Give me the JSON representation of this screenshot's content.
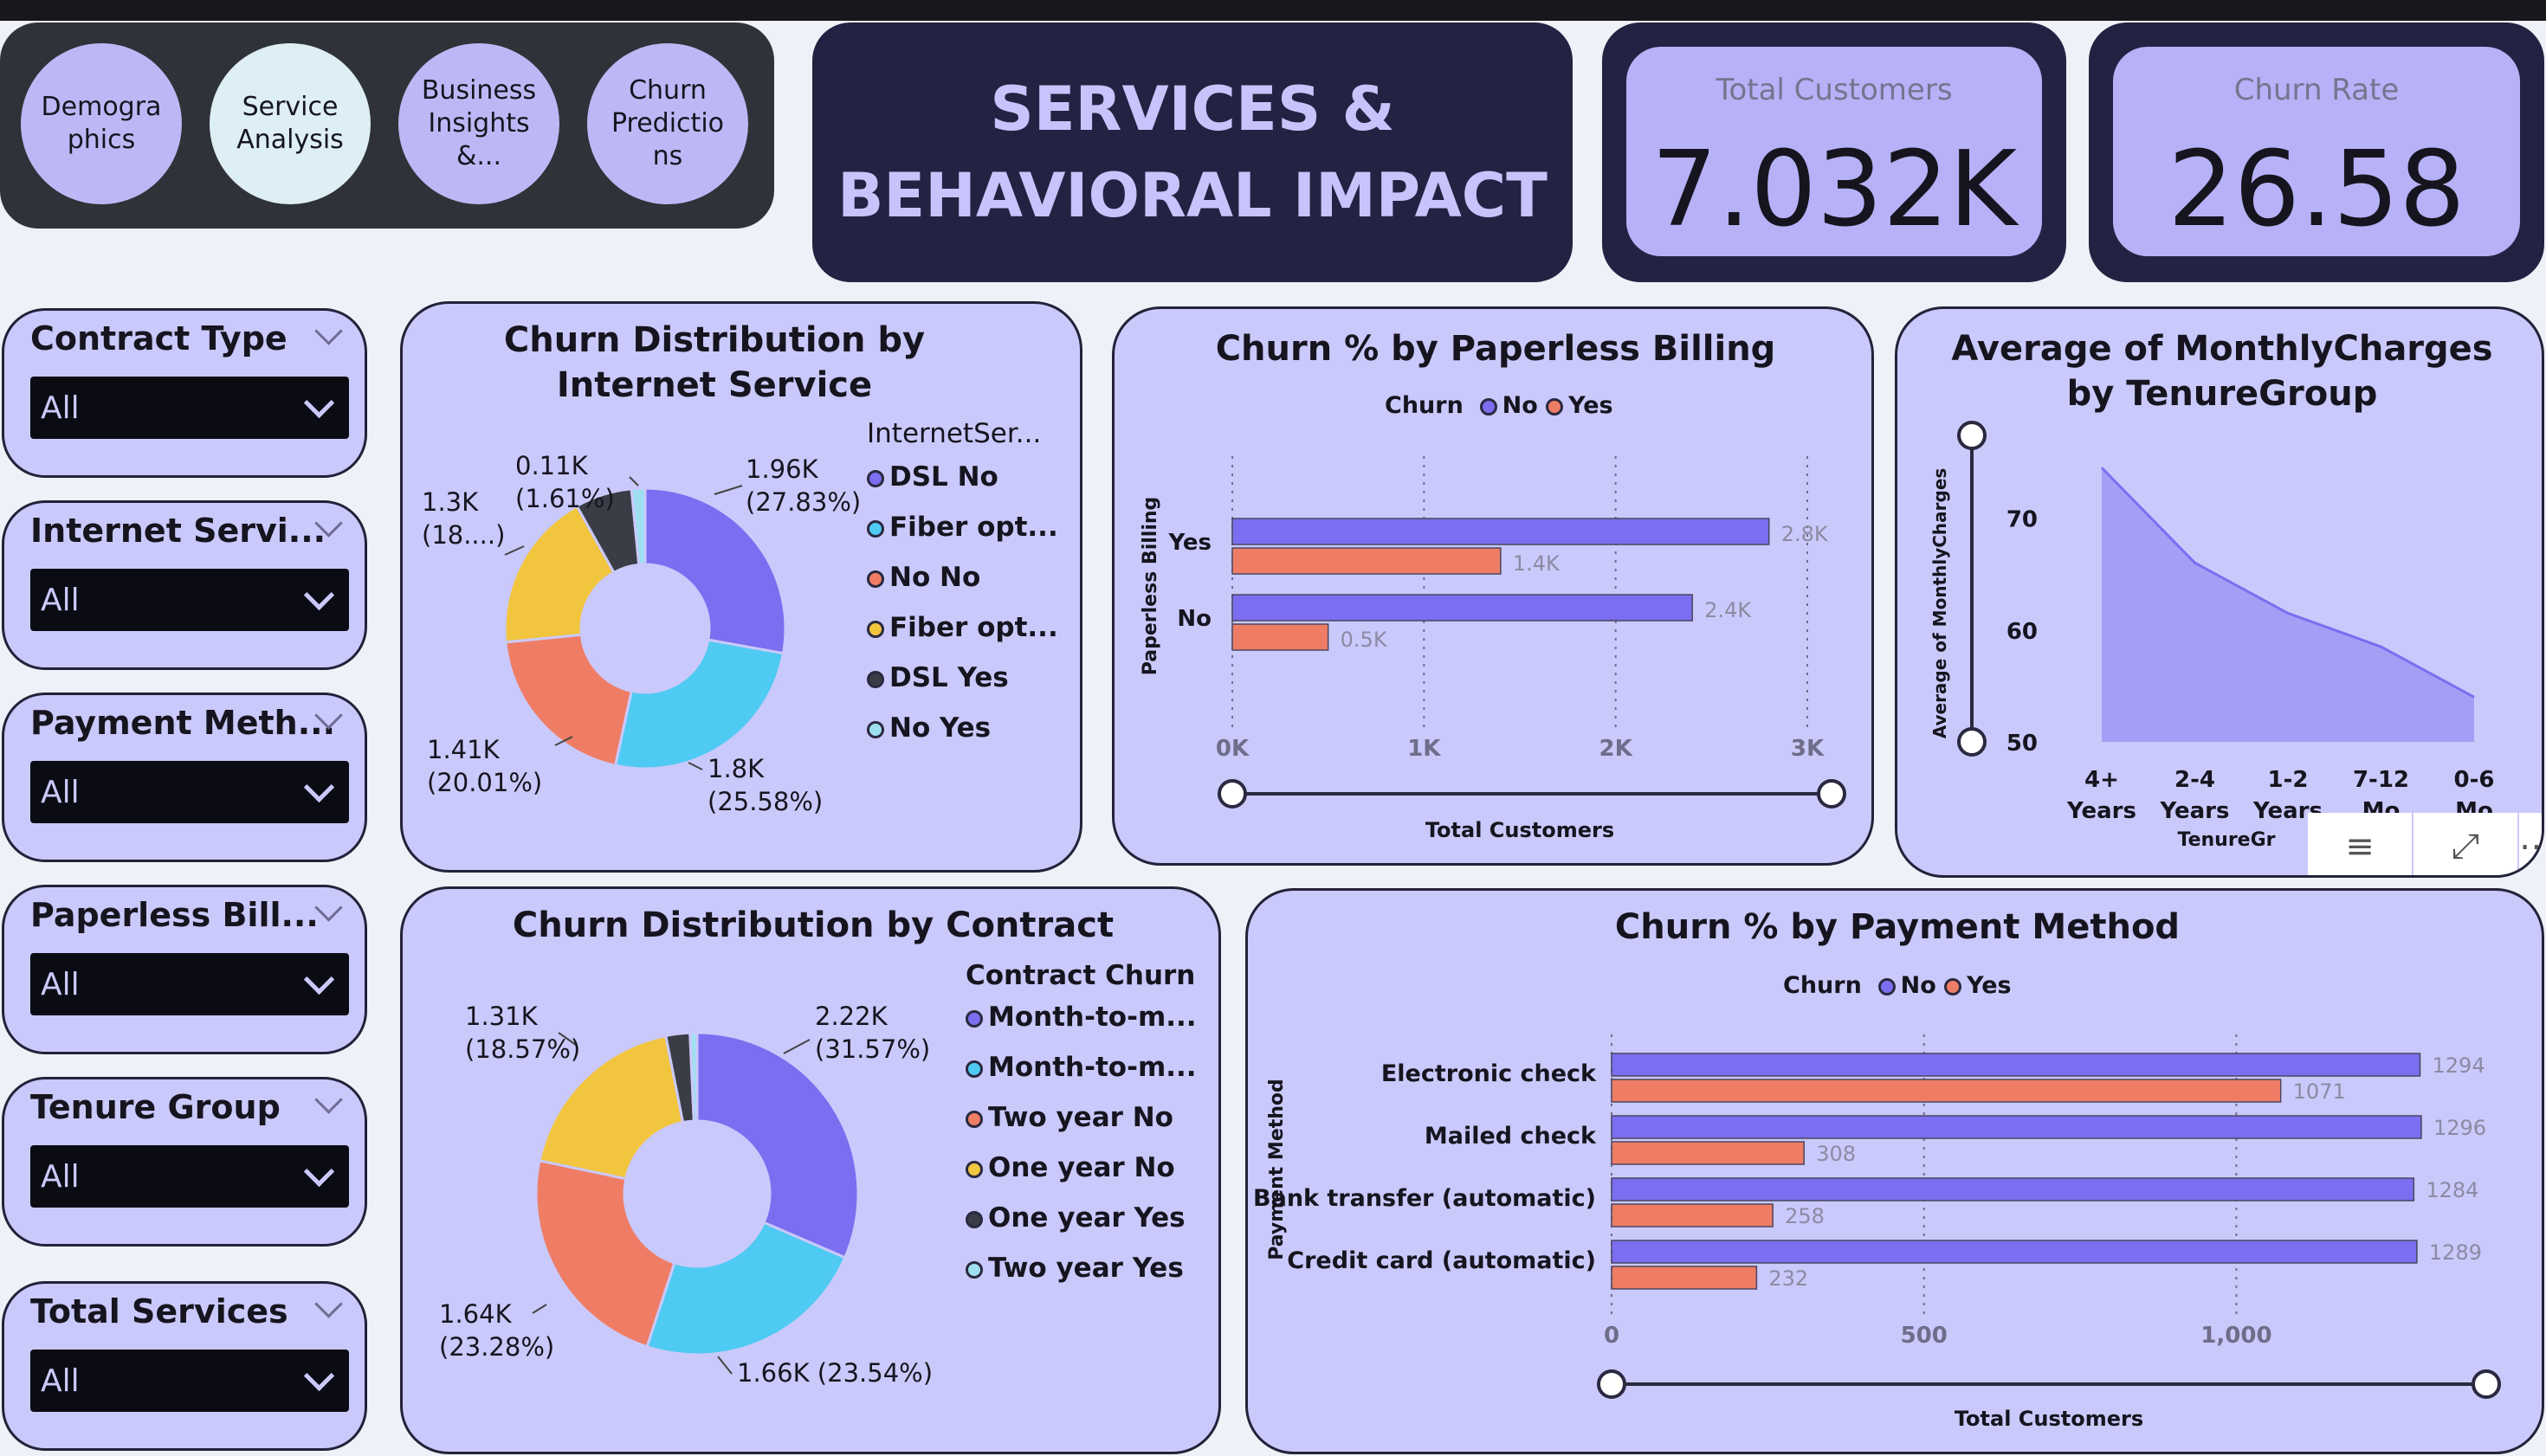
{
  "nav": [
    {
      "label": "Demogra phics",
      "active": false
    },
    {
      "label": "Service Analysis",
      "active": true
    },
    {
      "label": "Business Insights &...",
      "active": false
    },
    {
      "label": "Churn Predictio ns",
      "active": false
    }
  ],
  "title": {
    "line1": "SERVICES &",
    "line2": "BEHAVIORAL IMPACT"
  },
  "kpis": {
    "total_customers": {
      "label": "Total Customers",
      "value": "7.032K"
    },
    "churn_rate": {
      "label": "Churn Rate",
      "value": "26.58"
    }
  },
  "slicers": [
    {
      "label": "Contract Type",
      "value": "All"
    },
    {
      "label": "Internet Servi...",
      "value": "All"
    },
    {
      "label": "Payment Meth...",
      "value": "All"
    },
    {
      "label": "Paperless Bill...",
      "value": "All"
    },
    {
      "label": "Tenure Group",
      "value": "All"
    },
    {
      "label": "Total Services",
      "value": "All"
    }
  ],
  "colors": {
    "no": "#7b6ef0",
    "yes": "#ef7d66",
    "cyan": "#4fcaf3",
    "yellow": "#f2c53f",
    "dark": "#3a3d45",
    "light": "#9fe0f0"
  },
  "chart_data": [
    {
      "type": "pie",
      "title": "Churn Distribution by Internet Service",
      "legend_title": "InternetSer...",
      "slices": [
        {
          "name": "DSL No",
          "value": 1960,
          "percent": 27.83,
          "label": "1.96K",
          "label2": "(27.83%)"
        },
        {
          "name": "Fiber opt...",
          "value": 1800,
          "percent": 25.58,
          "label": "1.8K",
          "label2": "(25.58%)"
        },
        {
          "name": "No No",
          "value": 1410,
          "percent": 20.01,
          "label": "1.41K",
          "label2": "(20.01%)"
        },
        {
          "name": "Fiber opt...",
          "value": 1300,
          "percent": 18.5,
          "label": "1.3K",
          "label2": "(18....)"
        },
        {
          "name": "DSL Yes",
          "value": 460,
          "percent": 6.47,
          "label": "",
          "label2": ""
        },
        {
          "name": "No Yes",
          "value": 110,
          "percent": 1.61,
          "label": "0.11K",
          "label2": "(1.61%)"
        }
      ]
    },
    {
      "type": "bar",
      "title": "Churn % by Paperless Billing",
      "legend_title": "Churn",
      "series_names": [
        "No",
        "Yes"
      ],
      "categories": [
        "Yes",
        "No"
      ],
      "series": [
        {
          "name": "No",
          "values": [
            2800,
            2400
          ],
          "labels": [
            "2.8K",
            "2.4K"
          ]
        },
        {
          "name": "Yes",
          "values": [
            1400,
            500
          ],
          "labels": [
            "1.4K",
            "0.5K"
          ]
        }
      ],
      "xlabel": "Total Customers",
      "ylabel": "Paperless Billing",
      "xticks": [
        "0K",
        "1K",
        "2K",
        "3K"
      ],
      "xlim": [
        0,
        3000
      ]
    },
    {
      "type": "area",
      "title": "Average of MonthlyCharges by TenureGroup",
      "categories": [
        "4+ Years",
        "2-4 Years",
        "1-2 Years",
        "7-12 Mo",
        "0-6 Mo"
      ],
      "category_labels": [
        [
          "4+",
          "Years"
        ],
        [
          "2-4",
          "Years"
        ],
        [
          "1-2",
          "Years"
        ],
        [
          "7-12",
          "Mo"
        ],
        [
          "0-6",
          "Mo"
        ]
      ],
      "values": [
        74.5,
        66.0,
        61.5,
        58.5,
        54.0
      ],
      "ylabel": "Average of MonthlyCharges",
      "xlabel": "TenureGr",
      "yticks": [
        "70",
        "60",
        "50"
      ],
      "ylim": [
        50,
        76
      ]
    },
    {
      "type": "pie",
      "title": "Churn Distribution by Contract",
      "legend_title": "Contract Churn",
      "slices": [
        {
          "name": "Month-to-m...",
          "value": 2220,
          "percent": 31.57,
          "label": "2.22K",
          "label2": "(31.57%)"
        },
        {
          "name": "Month-to-m...",
          "value": 1660,
          "percent": 23.54,
          "label": "1.66K (23.54%)",
          "label2": ""
        },
        {
          "name": "Two year No",
          "value": 1640,
          "percent": 23.28,
          "label": "1.64K",
          "label2": "(23.28%)"
        },
        {
          "name": "One year No",
          "value": 1310,
          "percent": 18.57,
          "label": "1.31K",
          "label2": "(18.57%)"
        },
        {
          "name": "One year Yes",
          "value": 170,
          "percent": 2.4,
          "label": "",
          "label2": ""
        },
        {
          "name": "Two year Yes",
          "value": 50,
          "percent": 0.64,
          "label": "",
          "label2": ""
        }
      ]
    },
    {
      "type": "bar",
      "title": "Churn % by Payment Method",
      "legend_title": "Churn",
      "series_names": [
        "No",
        "Yes"
      ],
      "categories": [
        "Electronic check",
        "Mailed check",
        "Bank transfer (automatic)",
        "Credit card (automatic)"
      ],
      "series": [
        {
          "name": "No",
          "values": [
            1294,
            1296,
            1284,
            1289
          ]
        },
        {
          "name": "Yes",
          "values": [
            1071,
            308,
            258,
            232
          ]
        }
      ],
      "xlabel": "Total Customers",
      "ylabel": "Payment Method",
      "xticks": [
        "0",
        "500",
        "1,000"
      ],
      "xlim": [
        0,
        1400
      ]
    }
  ]
}
